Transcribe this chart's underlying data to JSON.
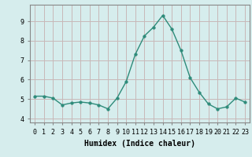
{
  "x": [
    0,
    1,
    2,
    3,
    4,
    5,
    6,
    7,
    8,
    9,
    10,
    11,
    12,
    13,
    14,
    15,
    16,
    17,
    18,
    19,
    20,
    21,
    22,
    23
  ],
  "y": [
    5.15,
    5.15,
    5.05,
    4.7,
    4.8,
    4.85,
    4.8,
    4.7,
    4.5,
    5.05,
    5.9,
    7.3,
    8.25,
    8.7,
    9.3,
    8.6,
    7.5,
    6.1,
    5.35,
    4.75,
    4.5,
    4.6,
    5.05,
    4.85
  ],
  "line_color": "#2e8b7a",
  "marker": "o",
  "marker_size": 2.5,
  "line_width": 1.0,
  "xlabel": "Humidex (Indice chaleur)",
  "xlabel_fontsize": 7,
  "xlim": [
    -0.5,
    23.5
  ],
  "ylim": [
    3.8,
    9.85
  ],
  "yticks": [
    4,
    5,
    6,
    7,
    8,
    9
  ],
  "xticks": [
    0,
    1,
    2,
    3,
    4,
    5,
    6,
    7,
    8,
    9,
    10,
    11,
    12,
    13,
    14,
    15,
    16,
    17,
    18,
    19,
    20,
    21,
    22,
    23
  ],
  "background_color": "#d6eded",
  "grid_color": "#c8b8b8",
  "tick_fontsize": 6.0,
  "spine_color": "#888888"
}
